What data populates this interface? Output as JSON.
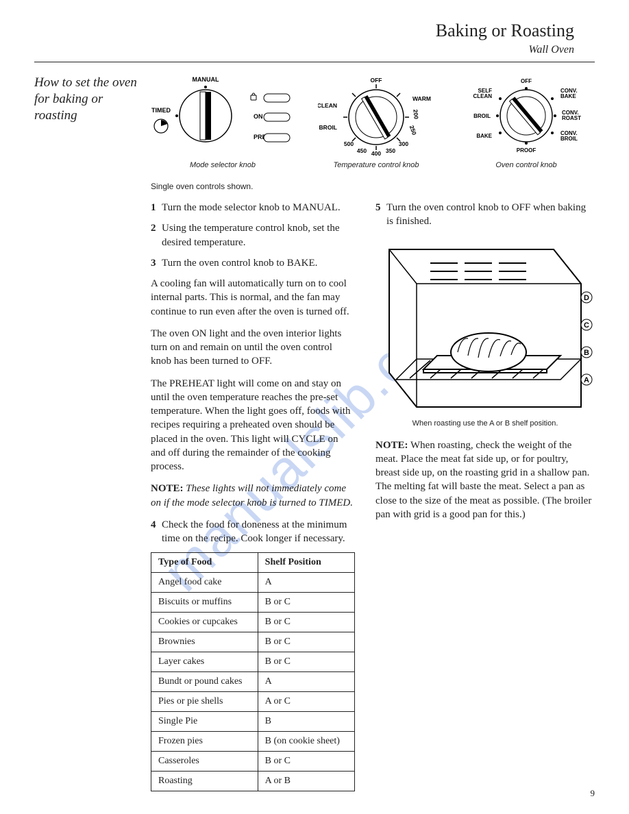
{
  "header": {
    "title": "Baking or Roasting",
    "subtitle": "Wall Oven"
  },
  "sidebar_heading": "How to set the oven for baking or roasting",
  "knobs": {
    "mode": {
      "caption": "Mode selector knob",
      "labels": {
        "manual": "MANUAL",
        "timed": "TIMED",
        "on": "ON",
        "preheat": "PREHEAT"
      }
    },
    "temp": {
      "caption": "Temperature control knob",
      "labels": {
        "off": "OFF",
        "warm": "WARM",
        "clean": "CLEAN",
        "broil": "BROIL",
        "t500": "500",
        "t450": "450",
        "t400": "400",
        "t350": "350",
        "t300": "300",
        "t250": "250",
        "t200": "200"
      }
    },
    "oven": {
      "caption": "Oven control knob",
      "labels": {
        "off": "OFF",
        "self_clean": "SELF\nCLEAN",
        "conv_bake": "CONV.\nBAKE",
        "broil": "BROIL",
        "conv_roast": "CONV.\nROAST",
        "bake": "BAKE",
        "conv_broil": "CONV.\nBROIL",
        "proof": "PROOF"
      }
    }
  },
  "controls_note": "Single oven controls shown.",
  "steps_left": [
    {
      "n": "1",
      "text": "Turn the mode selector knob to MANUAL."
    },
    {
      "n": "2",
      "text": "Using the temperature control knob, set the desired temperature."
    },
    {
      "n": "3",
      "text": "Turn the oven control knob to BAKE."
    }
  ],
  "paras_left": [
    "A cooling fan will automatically turn on to cool internal parts. This is normal, and the fan may continue to run even after the oven is turned off.",
    "The oven ON light and the oven interior lights turn on and remain on until the oven control knob has been turned to OFF.",
    "The PREHEAT light will come on and stay on until the oven temperature reaches the pre-set temperature. When the light goes off, foods with recipes requiring a preheated oven should be placed in the oven. This light will CYCLE on and off during the remainder of the cooking process."
  ],
  "note_left": {
    "lead": "NOTE:",
    "text": "These lights will not immediately come on if the mode selector knob is turned to TIMED."
  },
  "step4": {
    "n": "4",
    "text": "Check the food for doneness at the minimum time on the recipe. Cook longer if necessary."
  },
  "table": {
    "headers": [
      "Type of Food",
      "Shelf Position"
    ],
    "rows": [
      [
        "Angel food cake",
        "A"
      ],
      [
        "Biscuits or muffins",
        "B or C"
      ],
      [
        "Cookies or cupcakes",
        "B or C"
      ],
      [
        "Brownies",
        "B or C"
      ],
      [
        "Layer cakes",
        "B or C"
      ],
      [
        "Bundt or pound cakes",
        "A"
      ],
      [
        "Pies or pie shells",
        "A or C"
      ],
      [
        "Single Pie",
        "B"
      ],
      [
        "Frozen pies",
        "B (on cookie sheet)"
      ],
      [
        "Casseroles",
        "B or C"
      ],
      [
        "Roasting",
        "A or B"
      ]
    ]
  },
  "step5": {
    "n": "5",
    "text": "Turn the oven control knob to OFF when baking is finished."
  },
  "fig_caption": "When roasting use the A or B shelf position.",
  "shelf_labels": [
    "D",
    "C",
    "B",
    "A"
  ],
  "note_right": {
    "lead": "NOTE:",
    "text": "When roasting, check the weight of the meat. Place the meat fat side up, or for poultry, breast side up, on the roasting grid in a shallow pan. The melting fat will baste the meat. Select a pan as close to the size of the meat as possible. (The broiler pan with grid is a good pan for this.)"
  },
  "page_number": "9",
  "watermark": "manualslib.com",
  "colors": {
    "text": "#222222",
    "watermark": "#8aa8e8",
    "bg": "#ffffff"
  }
}
